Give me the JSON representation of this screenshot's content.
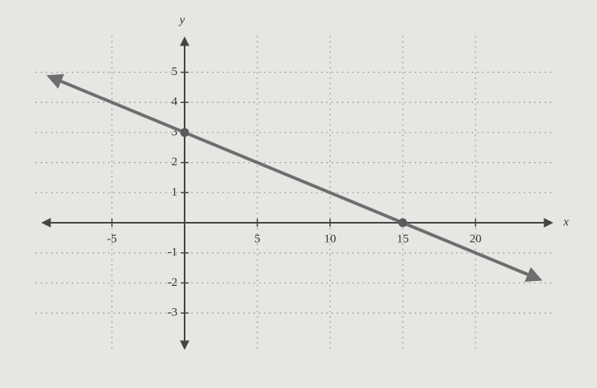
{
  "chart_data": {
    "type": "line",
    "xlabel": "x",
    "ylabel": "y",
    "series": [
      {
        "x": [
          -9.3,
          24.4
        ],
        "values": [
          4.86,
          -1.88
        ],
        "color": "#6e6e70"
      }
    ],
    "points": {
      "x": [
        0,
        15
      ],
      "values": [
        3,
        0
      ],
      "color": "#5a5a5c"
    },
    "xlim": [
      -9.7,
      25.2
    ],
    "ylim": [
      -4.14,
      5.94
    ],
    "xticks": [
      -5,
      5,
      10,
      15,
      20
    ],
    "yticks": [
      -3,
      -2,
      -1,
      1,
      2,
      3,
      4,
      5
    ],
    "grid": true
  }
}
